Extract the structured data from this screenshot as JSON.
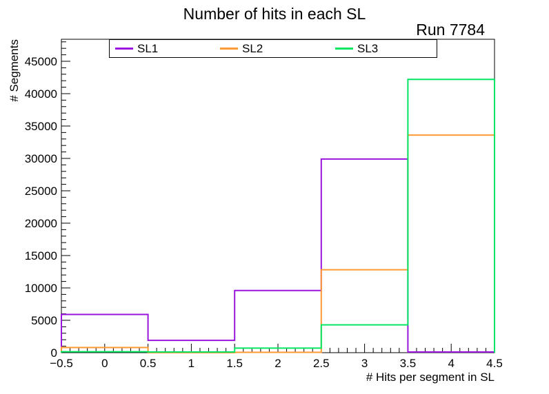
{
  "header": {
    "title": "Number of hits in each SL",
    "annotation": "Run 7784"
  },
  "chart_data": {
    "type": "line",
    "style": "step-histogram-outline",
    "title": "Number of hits in each SL",
    "annotation": "Run 7784",
    "xlabel": "# Hits per segment in SL",
    "ylabel": "# Segments",
    "xlim": [
      -0.5,
      4.5
    ],
    "ylim": [
      0,
      48400
    ],
    "grid": false,
    "legend_position": "top-inside",
    "bin_edges": [
      -0.5,
      0.5,
      1.5,
      2.5,
      3.5,
      4.5
    ],
    "bin_centers": [
      0,
      1,
      2,
      3,
      4
    ],
    "series": [
      {
        "name": "SL1",
        "color": "#9914DC",
        "values": [
          5900,
          1900,
          9600,
          29900,
          100
        ]
      },
      {
        "name": "SL2",
        "color": "#FF9933",
        "values": [
          800,
          0,
          50,
          12800,
          33600
        ]
      },
      {
        "name": "SL3",
        "color": "#00E663",
        "values": [
          150,
          100,
          700,
          4300,
          42200
        ]
      }
    ],
    "yticks": {
      "major_step": 5000,
      "minor_step": 1000,
      "max_labeled": 45000,
      "labels": [
        "0",
        "5000",
        "10000",
        "15000",
        "20000",
        "25000",
        "30000",
        "35000",
        "40000",
        "45000"
      ]
    },
    "xticks": {
      "major_step": 0.5,
      "minor_step": 0.1,
      "labels": [
        "−0.5",
        "0",
        "0.5",
        "1",
        "1.5",
        "2",
        "2.5",
        "3",
        "3.5",
        "4",
        "4.5"
      ]
    }
  },
  "colors": {
    "frame": "#000000",
    "background": "#ffffff",
    "text": "#000000"
  }
}
